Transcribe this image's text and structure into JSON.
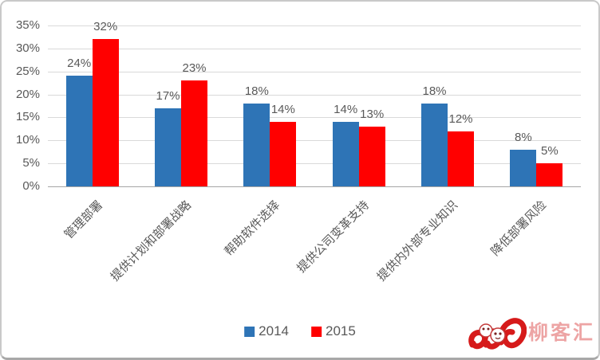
{
  "chart_data": {
    "type": "bar",
    "categories": [
      "管理部署",
      "提供计划和部署战略",
      "帮助软件选择",
      "提供公司变革支持",
      "提供内外部专业知识",
      "降低部署风险"
    ],
    "series": [
      {
        "name": "2014",
        "color": "#2E74B6",
        "values": [
          24,
          17,
          18,
          14,
          18,
          8
        ]
      },
      {
        "name": "2015",
        "color": "#FF0000",
        "values": [
          32,
          23,
          14,
          13,
          12,
          5
        ]
      }
    ],
    "y_ticks": [
      "0%",
      "5%",
      "10%",
      "15%",
      "20%",
      "25%",
      "30%",
      "35%"
    ],
    "ylim": [
      0,
      35
    ],
    "grid": true,
    "legend_position": "bottom",
    "data_label_suffix": "%",
    "title": "",
    "xlabel": "",
    "ylabel": ""
  },
  "legend": {
    "items": [
      {
        "label": "2014",
        "color": "#2E74B6"
      },
      {
        "label": "2015",
        "color": "#FF0000"
      }
    ]
  },
  "watermark": {
    "text": "柳客汇"
  },
  "colors": {
    "bar_2014": "#2E74B6",
    "bar_2015": "#FF0000",
    "axis_text": "#595959",
    "gridline": "#d9d9d9",
    "axis_line": "#a6a6a6",
    "watermark_red": "#d61a1a"
  }
}
